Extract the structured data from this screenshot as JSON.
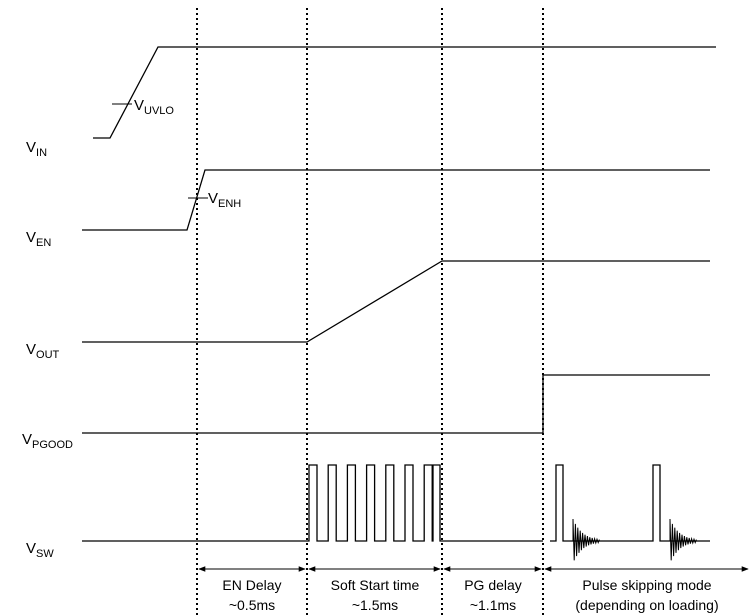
{
  "signals": {
    "vin": {
      "main": "V",
      "sub": "IN"
    },
    "ven": {
      "main": "V",
      "sub": "EN"
    },
    "vout": {
      "main": "V",
      "sub": "OUT"
    },
    "vpgood": {
      "main": "V",
      "sub": "PGOOD"
    },
    "vsw": {
      "main": "V",
      "sub": "SW"
    }
  },
  "thresholds": {
    "uvlo": {
      "main": "V",
      "sub": "UVLO"
    },
    "enh": {
      "main": "V",
      "sub": "ENH"
    }
  },
  "phases": [
    {
      "line1": "EN Delay",
      "line2": "~0.5ms"
    },
    {
      "line1": "Soft Start time",
      "line2": "~1.5ms"
    },
    {
      "line1": "PG delay",
      "line2": "~1.1ms"
    },
    {
      "line1": "Pulse skipping mode",
      "line2": "(depending on loading)"
    }
  ]
}
